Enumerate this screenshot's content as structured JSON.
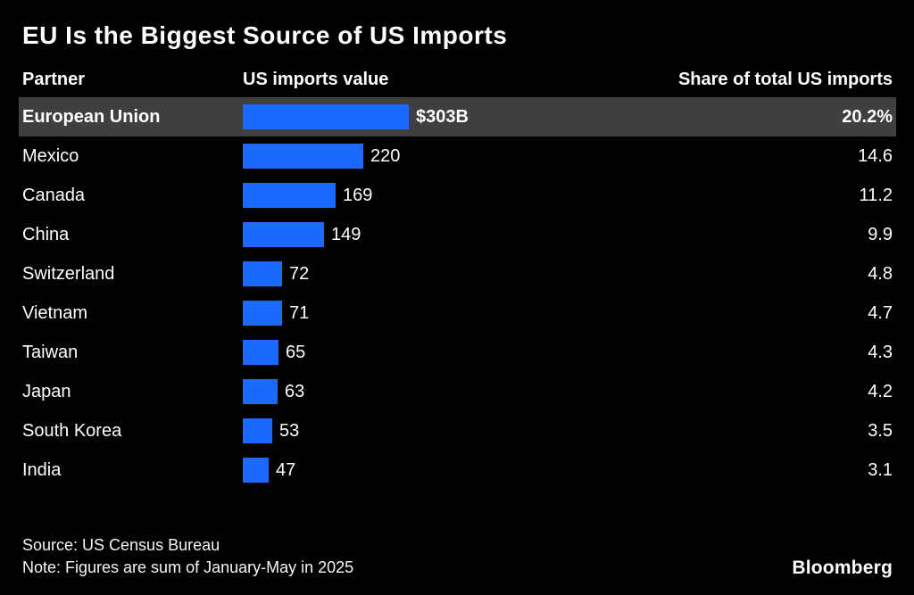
{
  "title": "EU Is the Biggest Source of US Imports",
  "columns": {
    "partner": "Partner",
    "value": "US imports value",
    "share": "Share of total US imports"
  },
  "chart_data": {
    "type": "bar",
    "title": "EU Is the Biggest Source of US Imports",
    "orientation": "horizontal",
    "bar_color": "#1a6aff",
    "highlight_row": 0,
    "highlight_bg": "#3f3f3f",
    "categories": [
      "European Union",
      "Mexico",
      "Canada",
      "China",
      "Switzerland",
      "Vietnam",
      "Taiwan",
      "Japan",
      "South Korea",
      "India"
    ],
    "values": [
      303,
      220,
      169,
      149,
      72,
      71,
      65,
      63,
      53,
      47
    ],
    "shares": [
      20.2,
      14.6,
      11.2,
      9.9,
      4.8,
      4.7,
      4.3,
      4.2,
      3.5,
      3.1
    ],
    "xlim": [
      0,
      303
    ],
    "rows": [
      {
        "partner": "European Union",
        "value": 303,
        "value_label": "$303B",
        "share_label": "20.2%"
      },
      {
        "partner": "Mexico",
        "value": 220,
        "value_label": "220",
        "share_label": "14.6"
      },
      {
        "partner": "Canada",
        "value": 169,
        "value_label": "169",
        "share_label": "11.2"
      },
      {
        "partner": "China",
        "value": 149,
        "value_label": "149",
        "share_label": "9.9"
      },
      {
        "partner": "Switzerland",
        "value": 72,
        "value_label": "72",
        "share_label": "4.8"
      },
      {
        "partner": "Vietnam",
        "value": 71,
        "value_label": "71",
        "share_label": "4.7"
      },
      {
        "partner": "Taiwan",
        "value": 65,
        "value_label": "65",
        "share_label": "4.3"
      },
      {
        "partner": "Japan",
        "value": 63,
        "value_label": "63",
        "share_label": "4.2"
      },
      {
        "partner": "South Korea",
        "value": 53,
        "value_label": "53",
        "share_label": "3.5"
      },
      {
        "partner": "India",
        "value": 47,
        "value_label": "47",
        "share_label": "3.1"
      }
    ]
  },
  "footer": {
    "source": "Source: US Census Bureau",
    "note": "Note: Figures are sum of January-May in 2025",
    "brand": "Bloomberg"
  }
}
